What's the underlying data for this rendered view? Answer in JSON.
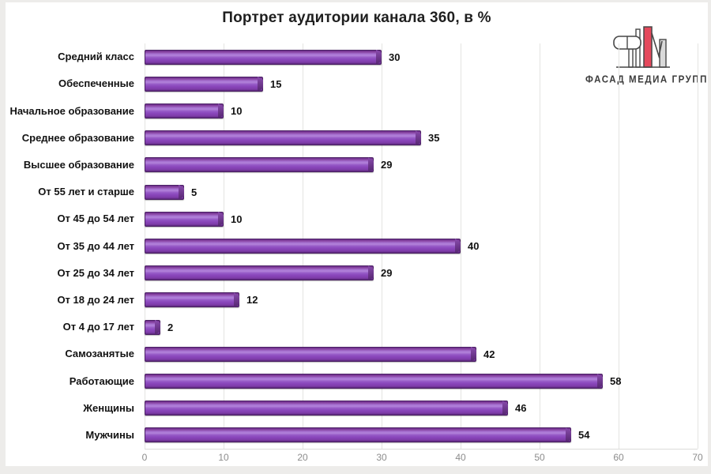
{
  "chart_data": {
    "type": "bar",
    "orientation": "horizontal",
    "title": "Портрет аудитории канала 360, в %",
    "categories": [
      "Средний класс",
      "Обеспеченные",
      "Начальное образование",
      "Среднее образование",
      "Высшее образование",
      "От 55 лет и старше",
      "От 45 до 54 лет",
      "От 35 до 44 лет",
      "От 25 до 34 лет",
      "От 18 до 24 лет",
      "От 4 до 17 лет",
      "Самозанятые",
      "Работающие",
      "Женщины",
      "Мужчины"
    ],
    "values": [
      30,
      15,
      10,
      35,
      29,
      5,
      10,
      40,
      29,
      12,
      2,
      42,
      58,
      46,
      54
    ],
    "xlabel": "",
    "ylabel": "",
    "xlim": [
      0,
      70
    ],
    "x_ticks": [
      0,
      10,
      20,
      30,
      40,
      50,
      60,
      70
    ],
    "grid": "vertical",
    "legend": "none",
    "value_labels": true,
    "colors": {
      "bar_fill": "#8a46bb",
      "bar_border": "#4b2164",
      "gridline": "#e4e4e2",
      "tick_text": "#8c8c8c",
      "label_text": "#121212",
      "frame": "#edecea"
    }
  },
  "logo": {
    "text": "ФАСАД МЕДИА ГРУПП",
    "colors": {
      "red": "#e5495c",
      "gray": "#d9d9d9",
      "outline": "#474747"
    }
  }
}
